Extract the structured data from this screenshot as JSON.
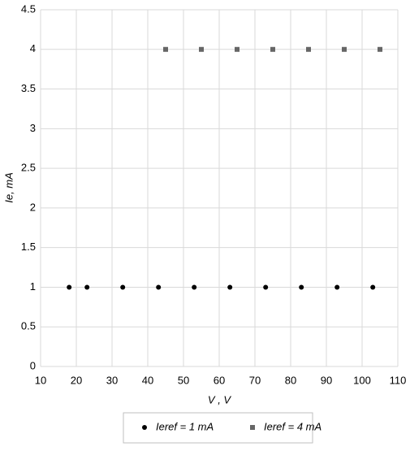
{
  "chart_data": {
    "type": "scatter",
    "xlabel": "V , V",
    "ylabel": "Ie, mA",
    "xlim": [
      10,
      110
    ],
    "xticks": [
      10,
      20,
      30,
      40,
      50,
      60,
      70,
      80,
      90,
      100,
      110
    ],
    "ylim": [
      0,
      4.5
    ],
    "yticks": [
      0,
      0.5,
      1,
      1.5,
      2,
      2.5,
      3,
      3.5,
      4,
      4.5
    ],
    "grid": true,
    "legend": "bottom",
    "series": [
      {
        "name": "Ieref = 1 mA",
        "color": "#000000",
        "marker": "circle",
        "x": [
          18,
          23,
          33,
          43,
          53,
          63,
          73,
          83,
          93,
          103
        ],
        "values": [
          1,
          1,
          1,
          1,
          1,
          1,
          1,
          1,
          1,
          1
        ]
      },
      {
        "name": "Ieref = 4 mA",
        "color": "#666666",
        "marker": "square",
        "x": [
          45,
          55,
          65,
          75,
          85,
          95,
          105
        ],
        "values": [
          4,
          4,
          4,
          4,
          4,
          4,
          4
        ]
      }
    ]
  }
}
